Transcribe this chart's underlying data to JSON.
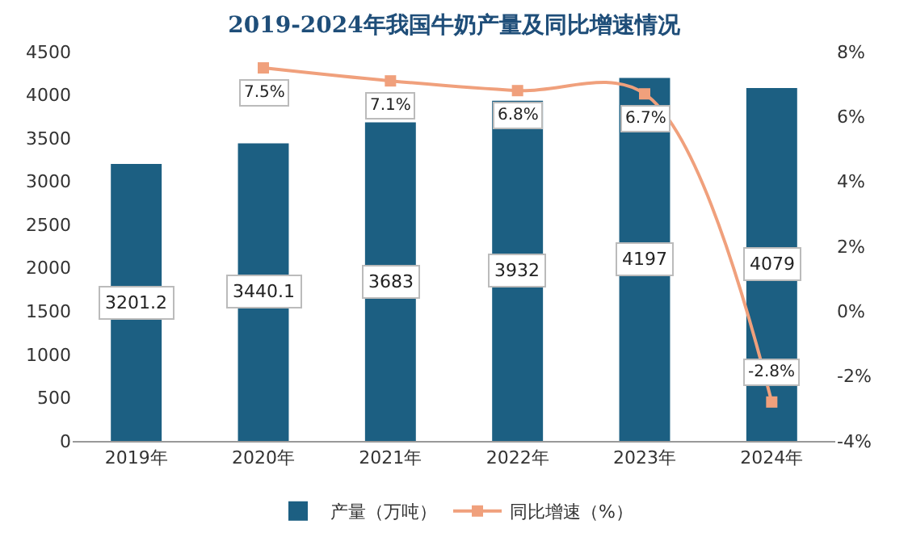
{
  "chart_data": {
    "type": "bar",
    "title": "2019-2024年我国牛奶产量及同比增速情况",
    "categories": [
      "2019年",
      "2020年",
      "2021年",
      "2022年",
      "2023年",
      "2024年"
    ],
    "series": [
      {
        "name": "产量（万吨）",
        "color": "#1c5f82",
        "values": [
          3201.2,
          3440.1,
          3683,
          3932,
          4197,
          4079
        ],
        "value_labels": [
          "3201.2",
          "3440.1",
          "3683",
          "3932",
          "4197",
          "4079"
        ]
      },
      {
        "name": "同比增速（%）",
        "type": "line",
        "axis": "y2",
        "color": "#f0a07c",
        "values": [
          null,
          7.5,
          7.1,
          6.8,
          6.7,
          -2.8
        ],
        "value_labels": [
          null,
          "7.5%",
          "7.1%",
          "6.8%",
          "6.7%",
          "-2.8%"
        ],
        "marker": "square",
        "line_style": "solid"
      }
    ],
    "ylim": [
      0,
      4500
    ],
    "yticks": [
      0,
      500,
      1000,
      1500,
      2000,
      2500,
      3000,
      3500,
      4000,
      4500
    ],
    "y2lim": [
      -4,
      8
    ],
    "y2ticks": [
      {
        "value": -4,
        "label": "-4%"
      },
      {
        "value": -2,
        "label": "-2%"
      },
      {
        "value": 0,
        "label": "0%"
      },
      {
        "value": 2,
        "label": "2%"
      },
      {
        "value": 4,
        "label": "4%"
      },
      {
        "value": 6,
        "label": "6%"
      },
      {
        "value": 8,
        "label": "8%"
      }
    ],
    "grid": false,
    "legend": "bottom"
  }
}
